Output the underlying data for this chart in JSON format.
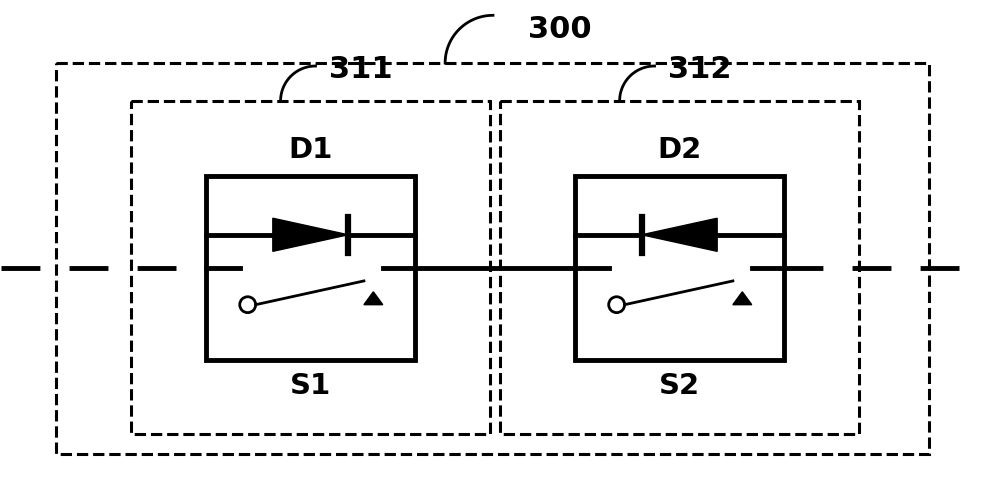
{
  "bg_color": "#ffffff",
  "line_color": "#000000",
  "fig_width": 9.86,
  "fig_height": 4.97,
  "label_300": "300",
  "label_311": "311",
  "label_312": "312",
  "label_D1": "D1",
  "label_D2": "D2",
  "label_S1": "S1",
  "label_S2": "S2"
}
